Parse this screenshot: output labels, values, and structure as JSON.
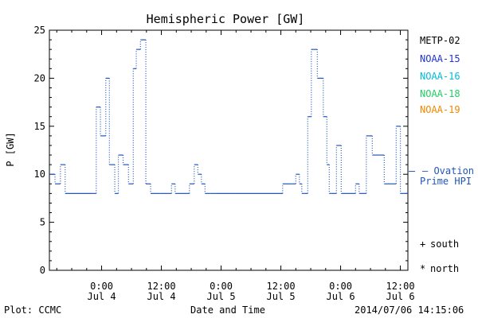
{
  "chart_data": {
    "type": "line",
    "title": "Hemispheric Power [GW]",
    "ylabel": "P [GW]",
    "xlabel": "Date and Time",
    "ylim": [
      0,
      25
    ],
    "xlim": [
      -0.437,
      2.563
    ],
    "x_unit": "days from 2014-07-04 00:00 UT",
    "yticks": [
      0,
      5,
      10,
      15,
      20,
      25
    ],
    "xticks": [
      {
        "x": 0.0,
        "time": "0:00",
        "date": "Jul 4"
      },
      {
        "x": 0.5,
        "time": "12:00",
        "date": "Jul 4"
      },
      {
        "x": 1.0,
        "time": "0:00",
        "date": "Jul 5"
      },
      {
        "x": 1.5,
        "time": "12:00",
        "date": "Jul 5"
      },
      {
        "x": 2.0,
        "time": "0:00",
        "date": "Jul 6"
      },
      {
        "x": 2.5,
        "time": "12:00",
        "date": "Jul 6"
      }
    ],
    "legend": {
      "placement": "right",
      "satellites": [
        {
          "name": "METP-02",
          "color": "#000000"
        },
        {
          "name": "NOAA-15",
          "color": "#2233cc"
        },
        {
          "name": "NOAA-16",
          "color": "#00bbdd"
        },
        {
          "name": "NOAA-18",
          "color": "#22cc66"
        },
        {
          "name": "NOAA-19",
          "color": "#ee8800"
        }
      ],
      "model": {
        "line1": "— Ovation",
        "line2": "Prime HPI",
        "color": "#2255bb"
      },
      "markers": [
        {
          "symbol": "+",
          "label": "south"
        },
        {
          "symbol": "*",
          "label": "north"
        }
      ]
    },
    "series": [
      {
        "name": "Ovation Prime HPI",
        "color": "#2255bb",
        "style": "step-dotted",
        "x": [
          -0.437,
          -0.42,
          -0.39,
          -0.345,
          -0.305,
          -0.08,
          -0.045,
          -0.01,
          0.035,
          0.065,
          0.11,
          0.14,
          0.18,
          0.225,
          0.265,
          0.29,
          0.325,
          0.37,
          0.41,
          0.43,
          0.485,
          0.585,
          0.615,
          0.65,
          0.735,
          0.775,
          0.805,
          0.835,
          0.865,
          0.905,
          0.955,
          1.07,
          1.515,
          1.595,
          1.625,
          1.655,
          1.675,
          1.695,
          1.725,
          1.755,
          1.775,
          1.805,
          1.855,
          1.885,
          1.905,
          1.925,
          1.965,
          2.005,
          2.04,
          2.125,
          2.155,
          2.215,
          2.265,
          2.32,
          2.365,
          2.41,
          2.465,
          2.5,
          2.563
        ],
        "y": [
          10,
          10,
          9,
          11,
          8,
          8,
          17,
          14,
          20,
          11,
          8,
          12,
          11,
          9,
          21,
          23,
          24,
          9,
          8,
          8,
          8,
          9,
          8,
          8,
          9,
          11,
          10,
          9,
          8,
          8,
          8,
          8,
          9,
          9,
          10,
          9,
          8,
          8,
          16,
          23,
          23,
          20,
          16,
          11,
          8,
          8,
          13,
          8,
          8,
          9,
          8,
          14,
          12,
          12,
          9,
          9,
          15,
          8,
          8
        ]
      }
    ],
    "current_value": 10.3
  },
  "footer": {
    "left": "Plot: CCMC",
    "center": "Date and Time",
    "right": "2014/07/06 14:15:06"
  }
}
